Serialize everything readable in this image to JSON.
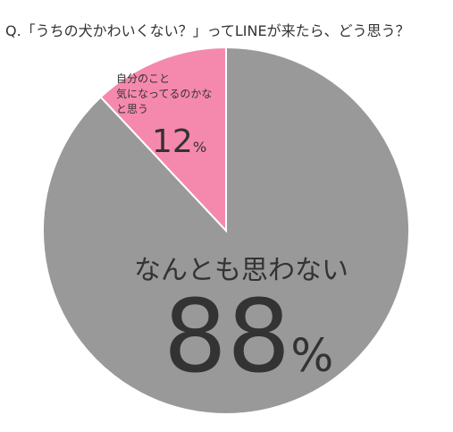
{
  "chart_data": {
    "type": "pie",
    "title": "Q.「うちの犬かわいくない？」ってLINEが来たら、どう思う？",
    "categories": [
      "自分のこと\n気になってるのかな\nと思う",
      "なんとも思わない"
    ],
    "values": [
      12,
      88
    ],
    "value_labels": [
      "12%",
      "88%"
    ],
    "colors": [
      "#f589ad",
      "#999999"
    ]
  }
}
